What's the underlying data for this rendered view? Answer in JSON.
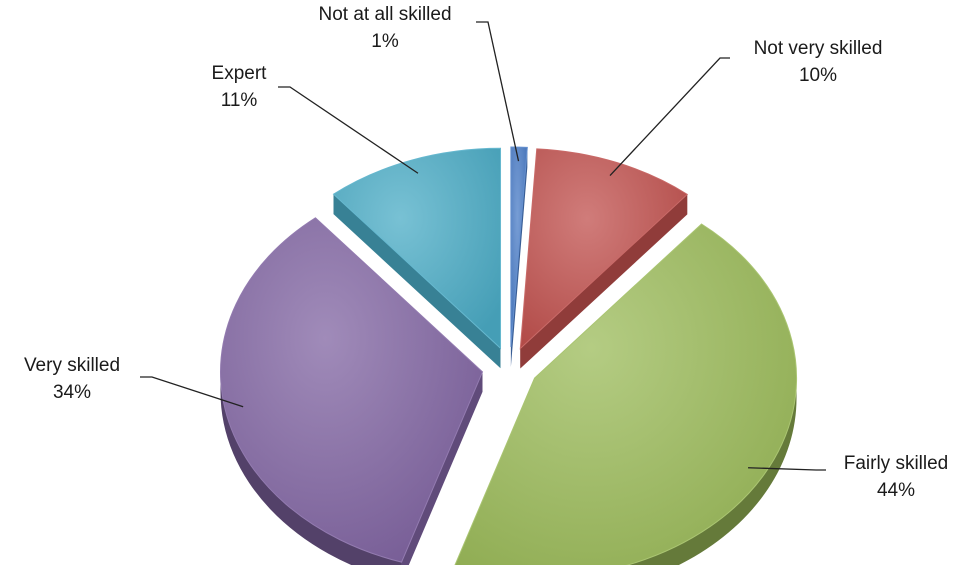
{
  "chart_data": {
    "type": "pie",
    "title": "",
    "unit": "%",
    "legend": "none",
    "slices": [
      {
        "name": "Not at all skilled",
        "value": 1,
        "label": "1%",
        "color": "#4a7cc7"
      },
      {
        "name": "Not very skilled",
        "value": 10,
        "label": "10%",
        "color": "#c0504d"
      },
      {
        "name": "Fairly skilled",
        "value": 44,
        "label": "44%",
        "color": "#9bbb59"
      },
      {
        "name": "Very skilled",
        "value": 34,
        "label": "34%",
        "color": "#8064a2"
      },
      {
        "name": "Expert",
        "value": 11,
        "label": "11%",
        "color": "#4bacc6"
      }
    ]
  }
}
